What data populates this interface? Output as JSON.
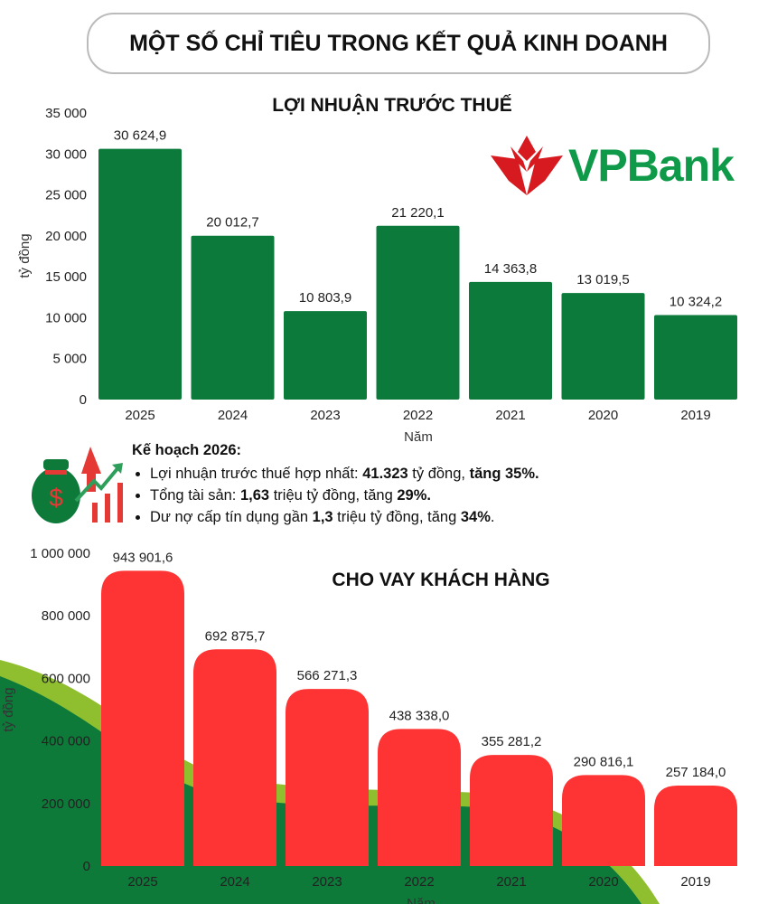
{
  "header": {
    "title": "MỘT SỐ CHỈ TIÊU TRONG KẾT QUẢ KINH DOANH"
  },
  "logo": {
    "text": "VPBank"
  },
  "plan": {
    "title": "Kế hoạch 2026:",
    "items": [
      {
        "a": "Lợi nhuận trước thuế hợp nhất: ",
        "b": "41.323",
        "c": " tỷ đồng, ",
        "d": "tăng 35%."
      },
      {
        "a": "Tổng tài sản: ",
        "b": "1,63",
        "c": " triệu tỷ đồng, tăng ",
        "d": "29%."
      },
      {
        "a": "Dư nợ cấp tín dụng gần ",
        "b": "1,3",
        "c": " triệu tỷ đồng, tăng ",
        "d": "34%",
        "e": "."
      }
    ]
  },
  "colors": {
    "profit_bar": "#0b7a3b",
    "loan_bar": "#fd3433",
    "hill_dark": "#0d7a3a",
    "hill_light": "#8fbf2f"
  },
  "chart_data": [
    {
      "type": "bar",
      "title": "LỢI NHUẬN TRƯỚC THUẾ",
      "xlabel": "Năm",
      "ylabel": "tỷ đồng",
      "ylim": [
        0,
        35000
      ],
      "yticks": [
        "0",
        "5 000",
        "10 000",
        "15 000",
        "20 000",
        "25 000",
        "30 000",
        "35 000"
      ],
      "categories": [
        "2025",
        "2024",
        "2023",
        "2022",
        "2021",
        "2020",
        "2019"
      ],
      "values": [
        30624.9,
        20012.7,
        10803.9,
        21220.1,
        14363.8,
        13019.5,
        10324.2
      ],
      "labels": [
        "30 624,9",
        "20 012,7",
        "10 803,9",
        "21 220,1",
        "14 363,8",
        "13 019,5",
        "10 324,2"
      ]
    },
    {
      "type": "bar",
      "title": "CHO VAY KHÁCH HÀNG",
      "xlabel": "Năm",
      "ylabel": "tỷ đồng",
      "ylim": [
        0,
        1000000
      ],
      "yticks": [
        "0",
        "200 000",
        "400 000",
        "600 000",
        "800 000",
        "1 000 000"
      ],
      "categories": [
        "2025",
        "2024",
        "2023",
        "2022",
        "2021",
        "2020",
        "2019"
      ],
      "values": [
        943901.6,
        692875.7,
        566271.3,
        438338.0,
        355281.2,
        290816.1,
        257184.0
      ],
      "labels": [
        "943 901,6",
        "692 875,7",
        "566 271,3",
        "438 338,0",
        "355 281,2",
        "290 816,1",
        "257 184,0"
      ]
    }
  ]
}
